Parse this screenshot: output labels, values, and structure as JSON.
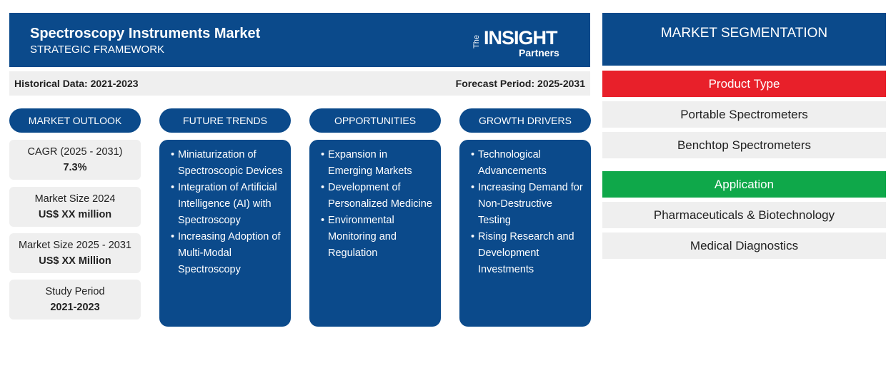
{
  "header": {
    "title": "Spectroscopy Instruments Market",
    "subtitle": "STRATEGIC FRAMEWORK",
    "logo": {
      "top": "The",
      "main": "INSIGHT",
      "bottom": "Partners"
    }
  },
  "period_bar": {
    "historical": "Historical Data: 2021-2023",
    "forecast": "Forecast Period: 2025-2031"
  },
  "columns": [
    {
      "heading": "MARKET OUTLOOK",
      "metrics": [
        {
          "label": "CAGR (2025 - 2031)",
          "value": "7.3%"
        },
        {
          "label": "Market Size 2024",
          "value": "US$ XX million"
        },
        {
          "label": "Market Size 2025 - 2031",
          "value": "US$ XX Million"
        },
        {
          "label": "Study Period",
          "value": "2021-2023"
        }
      ]
    },
    {
      "heading": "FUTURE TRENDS",
      "items": [
        "Miniaturization of Spectroscopic Devices",
        "Integration of Artificial Intelligence (AI) with Spectroscopy",
        "Increasing Adoption of Multi-Modal Spectroscopy"
      ]
    },
    {
      "heading": "OPPORTUNITIES",
      "items": [
        "Expansion in Emerging Markets",
        "Development of Personalized Medicine",
        "Environmental Monitoring and Regulation"
      ]
    },
    {
      "heading": "GROWTH DRIVERS",
      "items": [
        "Technological Advancements",
        "Increasing Demand for Non-Destructive Testing",
        "Rising Research and Development Investments"
      ]
    }
  ],
  "segmentation": {
    "title": "MARKET SEGMENTATION",
    "groups": [
      {
        "name": "Product Type",
        "items": [
          "Portable Spectrometers",
          "Benchtop Spectrometers"
        ]
      },
      {
        "name": "Application",
        "items": [
          "Pharmaceuticals & Biotechnology",
          "Medical Diagnostics"
        ]
      }
    ]
  }
}
